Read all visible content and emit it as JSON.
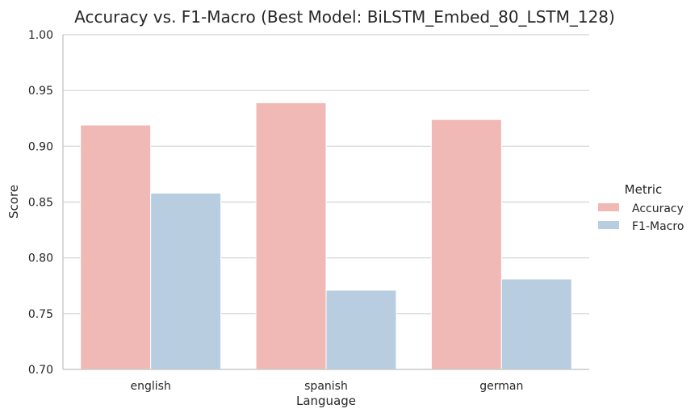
{
  "chart_data": {
    "type": "bar",
    "title": "Accuracy vs. F1-Macro (Best Model: BiLSTM_Embed_80_LSTM_128)",
    "xlabel": "Language",
    "ylabel": "Score",
    "categories": [
      "english",
      "spanish",
      "german"
    ],
    "series": [
      {
        "name": "Accuracy",
        "values": [
          0.919,
          0.939,
          0.924
        ],
        "color": "#f1b9b5"
      },
      {
        "name": "F1-Macro",
        "values": [
          0.858,
          0.771,
          0.781
        ],
        "color": "#b8cde0"
      }
    ],
    "ylim": [
      0.7,
      1.0
    ],
    "yticks": [
      "0.70",
      "0.75",
      "0.80",
      "0.85",
      "0.90",
      "0.95",
      "1.00"
    ],
    "grid": "horizontal",
    "legend": {
      "title": "Metric",
      "placement": "right"
    }
  }
}
